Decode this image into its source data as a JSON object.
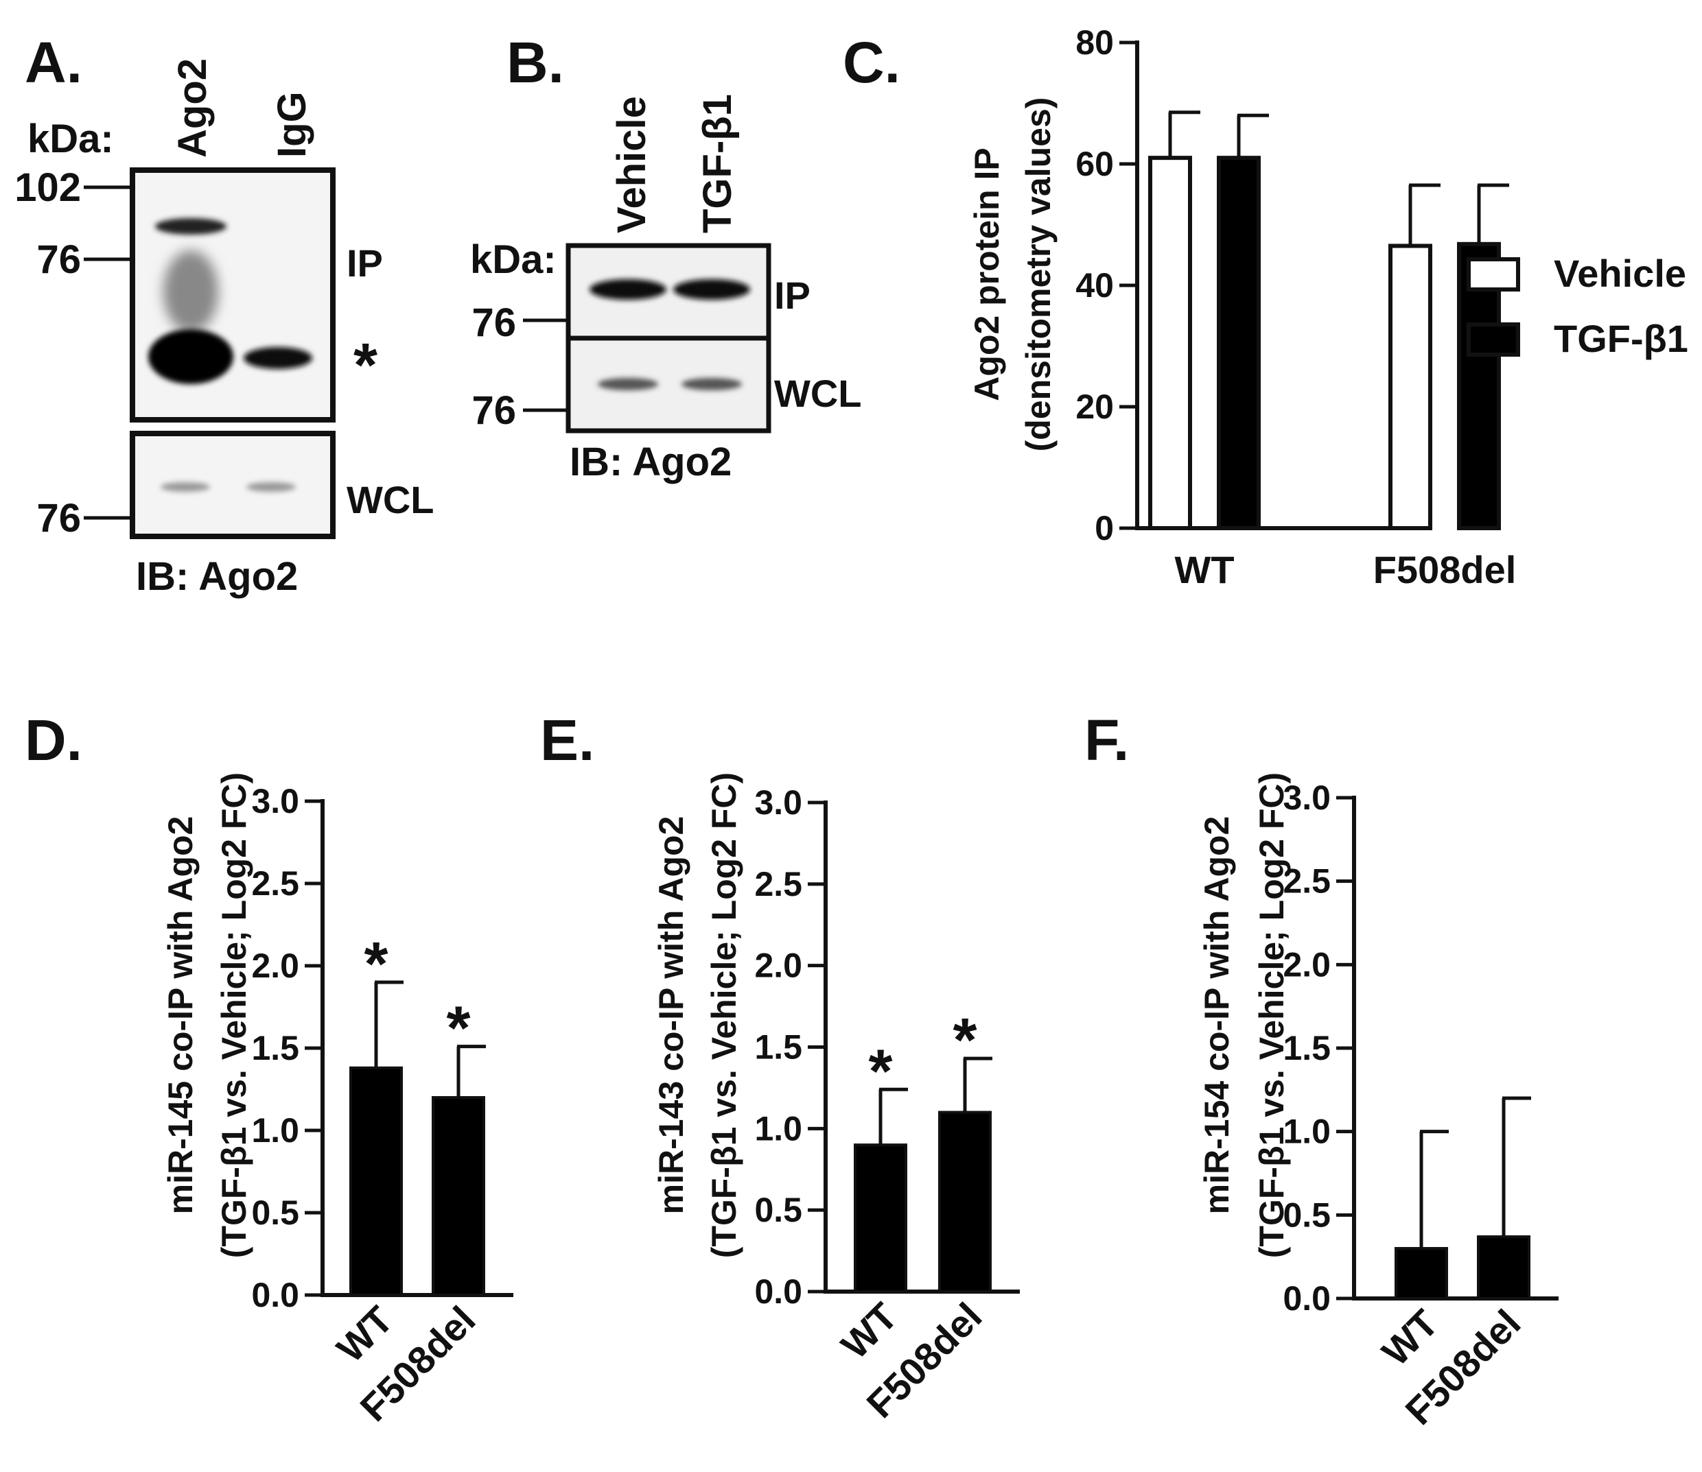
{
  "panels": {
    "A": {
      "label": "A.",
      "kda_label": "kDa:",
      "lanes": [
        "Ago2",
        "IgG"
      ],
      "markers_ip": [
        "102",
        "76"
      ],
      "markers_wcl": [
        "76"
      ],
      "ip_label": "IP",
      "star": "*",
      "wcl_label": "WCL",
      "ib_label": "IB: Ago2"
    },
    "B": {
      "label": "B.",
      "kda_label": "kDa:",
      "lanes": [
        "Vehicle",
        "TGF-β1"
      ],
      "markers_ip": [
        "76"
      ],
      "markers_wcl": [
        "76"
      ],
      "ip_label": "IP",
      "wcl_label": "WCL",
      "ib_label": "IB: Ago2"
    },
    "C": {
      "label": "C."
    },
    "D": {
      "label": "D."
    },
    "E": {
      "label": "E."
    },
    "F": {
      "label": "F."
    }
  },
  "chart_data": [
    {
      "id": "C",
      "type": "bar",
      "ylabel_line1": "Ago2 protein IP",
      "ylabel_line2": "(densitometry values)",
      "categories": [
        "WT",
        "F508del"
      ],
      "ylim": [
        0,
        80
      ],
      "yticks": [
        "0",
        "20",
        "40",
        "60",
        "80"
      ],
      "series": [
        {
          "name": "Vehicle",
          "color": "#ffffff",
          "values": [
            61,
            46.5
          ],
          "errors": [
            7.5,
            10
          ]
        },
        {
          "name": "TGF-β1",
          "color": "#000000",
          "values": [
            61,
            46.8
          ],
          "errors": [
            7,
            9.7
          ]
        }
      ],
      "legend_position": "right"
    },
    {
      "id": "D",
      "type": "bar",
      "ylabel_line1": "miR-145 co-IP with Ago2",
      "ylabel_line2": "(TGF-β1 vs. Vehicle; Log2 FC)",
      "categories": [
        "WT",
        "F508del"
      ],
      "values": [
        1.38,
        1.2
      ],
      "errors": [
        0.52,
        0.31
      ],
      "significance": [
        "*",
        "*"
      ],
      "ylim": [
        0,
        3.0
      ],
      "yticks": [
        "0.0",
        "0.5",
        "1.0",
        "1.5",
        "2.0",
        "2.5",
        "3.0"
      ]
    },
    {
      "id": "E",
      "type": "bar",
      "ylabel_line1": "miR-143 co-IP with Ago2",
      "ylabel_line2": "(TGF-β1 vs. Vehicle; Log2 FC)",
      "categories": [
        "WT",
        "F508del"
      ],
      "values": [
        0.9,
        1.1
      ],
      "errors": [
        0.34,
        0.33
      ],
      "significance": [
        "*",
        "*"
      ],
      "ylim": [
        0,
        3.0
      ],
      "yticks": [
        "0.0",
        "0.5",
        "1.0",
        "1.5",
        "2.0",
        "2.5",
        "3.0"
      ]
    },
    {
      "id": "F",
      "type": "bar",
      "ylabel_line1": "miR-154 co-IP with Ago2",
      "ylabel_line2": "(TGF-β1 vs. Vehicle; Log2 FC)",
      "categories": [
        "WT",
        "F508del"
      ],
      "values": [
        0.3,
        0.37
      ],
      "errors": [
        0.7,
        0.83
      ],
      "significance": [
        "",
        ""
      ],
      "ylim": [
        0,
        3.0
      ],
      "yticks": [
        "0.0",
        "0.5",
        "1.0",
        "1.5",
        "2.0",
        "2.5",
        "3.0"
      ]
    }
  ]
}
